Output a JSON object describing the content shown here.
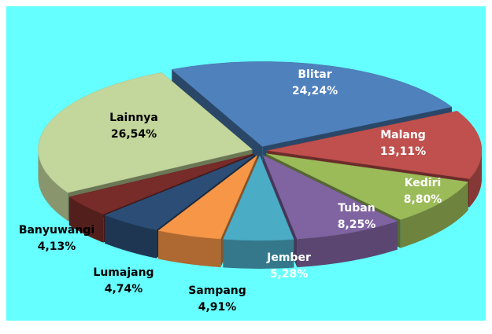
{
  "chart_data": {
    "type": "pie",
    "categories": [
      "Blitar",
      "Malang",
      "Kediri",
      "Tuban",
      "Jember",
      "Sampang",
      "Lumajang",
      "Banyuwangi",
      "Lainnya"
    ],
    "values": [
      24.24,
      13.11,
      8.8,
      8.25,
      5.28,
      4.91,
      4.74,
      4.13,
      26.54
    ],
    "value_labels": [
      "24,24%",
      "13,11%",
      "8,80%",
      "8,25%",
      "5,28%",
      "4,91%",
      "4,74%",
      "4,13%",
      "26,54%"
    ],
    "colors": [
      "#4f81bd",
      "#c0504d",
      "#9bbb59",
      "#8064a2",
      "#4bacc6",
      "#f79646",
      "#2c4d75",
      "#772c2a",
      "#c3d69b"
    ]
  }
}
